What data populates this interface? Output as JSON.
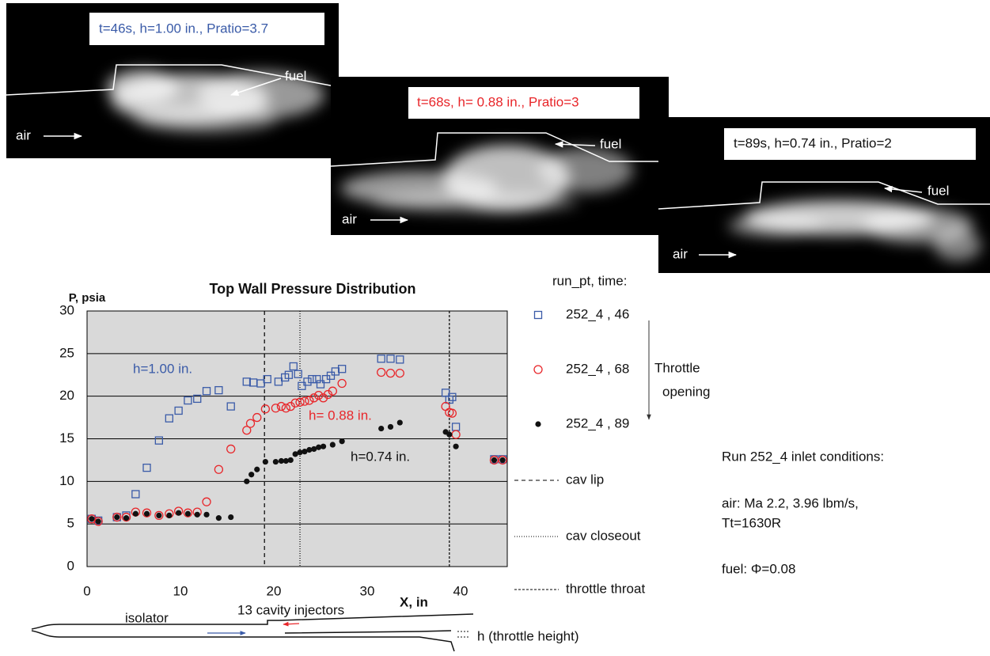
{
  "images": [
    {
      "caption": "t=46s, h=1.00 in., Pratio=3.7",
      "caption_color": "#3a5ba8",
      "fuel": "fuel",
      "air": "air"
    },
    {
      "caption": "t=68s, h= 0.88 in., Pratio=3",
      "caption_color": "#e8262a",
      "fuel": "fuel",
      "air": "air"
    },
    {
      "caption": "t=89s, h=0.74 in., Pratio=2",
      "caption_color": "#111111",
      "fuel": "fuel",
      "air": "air"
    }
  ],
  "chart_data": {
    "type": "scatter",
    "title": "Top Wall Pressure Distribution",
    "y_label": "P, psia",
    "x_label": "X, in",
    "xlim": [
      0,
      45
    ],
    "xticks": [
      0,
      10,
      20,
      30,
      40
    ],
    "ylim": [
      0,
      30
    ],
    "yticks": [
      0,
      5,
      10,
      15,
      20,
      25,
      30
    ],
    "grid": true,
    "legend_title": "run_pt, time:",
    "series": [
      {
        "name": "252_4 , 46",
        "color": "#3a5ba8",
        "marker": "square",
        "x": [
          0.5,
          1.2,
          3.2,
          4.2,
          5.2,
          6.4,
          7.7,
          8.8,
          9.8,
          10.8,
          11.8,
          12.8,
          14.1,
          15.4,
          17.1,
          17.8,
          18.6,
          19.3,
          20.5,
          21.2,
          21.6,
          22.1,
          22.6,
          23.0,
          23.6,
          24.1,
          24.6,
          25.0,
          25.6,
          26.1,
          26.6,
          27.3,
          31.5,
          32.5,
          33.5,
          38.4,
          38.8,
          39.1,
          39.5,
          43.6,
          44.5
        ],
        "values": [
          5.6,
          5.4,
          5.8,
          6.0,
          8.5,
          11.6,
          14.8,
          17.4,
          18.3,
          19.5,
          19.7,
          20.6,
          20.7,
          18.8,
          21.7,
          21.6,
          21.5,
          22.0,
          21.7,
          22.2,
          22.5,
          23.5,
          22.6,
          21.2,
          21.7,
          22.0,
          22.0,
          21.4,
          22.0,
          22.4,
          22.9,
          23.2,
          24.4,
          24.4,
          24.3,
          20.4,
          19.6,
          19.9,
          16.4,
          12.6,
          12.6
        ]
      },
      {
        "name": "252_4 , 68",
        "color": "#e8262a",
        "marker": "circle",
        "x": [
          0.5,
          1.2,
          3.2,
          4.2,
          5.2,
          6.4,
          7.7,
          8.8,
          9.8,
          10.8,
          11.8,
          12.8,
          14.1,
          15.4,
          17.1,
          17.5,
          18.2,
          19.1,
          20.2,
          20.8,
          21.3,
          21.8,
          22.3,
          22.8,
          23.3,
          23.8,
          24.3,
          24.8,
          25.3,
          25.8,
          26.3,
          27.3,
          31.5,
          32.5,
          33.5,
          38.4,
          38.8,
          39.1,
          39.5,
          43.6,
          44.5
        ],
        "values": [
          5.6,
          5.3,
          5.8,
          5.8,
          6.4,
          6.3,
          6.0,
          6.2,
          6.5,
          6.3,
          6.4,
          7.6,
          11.4,
          13.8,
          16.0,
          16.8,
          17.5,
          18.5,
          18.6,
          18.8,
          18.6,
          18.8,
          19.2,
          19.3,
          19.4,
          19.5,
          19.8,
          20.1,
          19.8,
          20.2,
          20.6,
          21.5,
          22.8,
          22.7,
          22.7,
          18.8,
          18.1,
          18.0,
          15.5,
          12.5,
          12.5
        ]
      },
      {
        "name": "252_4 , 89",
        "color": "#111111",
        "marker": "dot",
        "x": [
          0.5,
          1.2,
          3.2,
          4.2,
          5.2,
          6.4,
          7.7,
          8.8,
          9.8,
          10.8,
          11.8,
          12.8,
          14.1,
          15.4,
          17.1,
          17.6,
          18.2,
          19.1,
          20.2,
          20.8,
          21.3,
          21.8,
          22.3,
          22.8,
          23.3,
          23.8,
          24.3,
          24.8,
          25.3,
          26.3,
          27.3,
          31.5,
          32.5,
          33.5,
          38.4,
          38.8,
          39.5,
          43.6,
          44.5
        ],
        "values": [
          5.6,
          5.3,
          5.8,
          5.7,
          6.2,
          6.2,
          6.0,
          6.0,
          6.3,
          6.2,
          6.1,
          6.1,
          5.7,
          5.8,
          10.0,
          10.8,
          11.4,
          12.3,
          12.3,
          12.4,
          12.4,
          12.5,
          13.2,
          13.4,
          13.5,
          13.7,
          13.8,
          14.0,
          14.1,
          14.3,
          14.7,
          16.2,
          16.4,
          16.9,
          15.8,
          15.5,
          14.1,
          12.5,
          12.5
        ]
      }
    ],
    "vlines": [
      {
        "x": 19,
        "label": "cav lip",
        "dash": "5,4"
      },
      {
        "x": 22.8,
        "label": "cav closeout",
        "dash": "1,2"
      },
      {
        "x": 38.8,
        "label": "throttle throat",
        "dash": "3,2"
      }
    ],
    "annotations": [
      {
        "text": "h=1.00 in.",
        "color": "#3a5ba8"
      },
      {
        "text": "h= 0.88 in.",
        "color": "#e8262a"
      },
      {
        "text": "h=0.74 in.",
        "color": "#111111"
      }
    ],
    "throttle_note": [
      "Throttle",
      "opening"
    ]
  },
  "conditions": [
    "Run 252_4 inlet conditions:",
    "air: Ma 2.2, 3.96 lbm/s,",
    "Tt=1630R",
    "fuel: Φ=0.08"
  ],
  "schematic": {
    "isolator": "isolator",
    "injectors": "13 cavity injectors",
    "height": "h (throttle height)"
  }
}
